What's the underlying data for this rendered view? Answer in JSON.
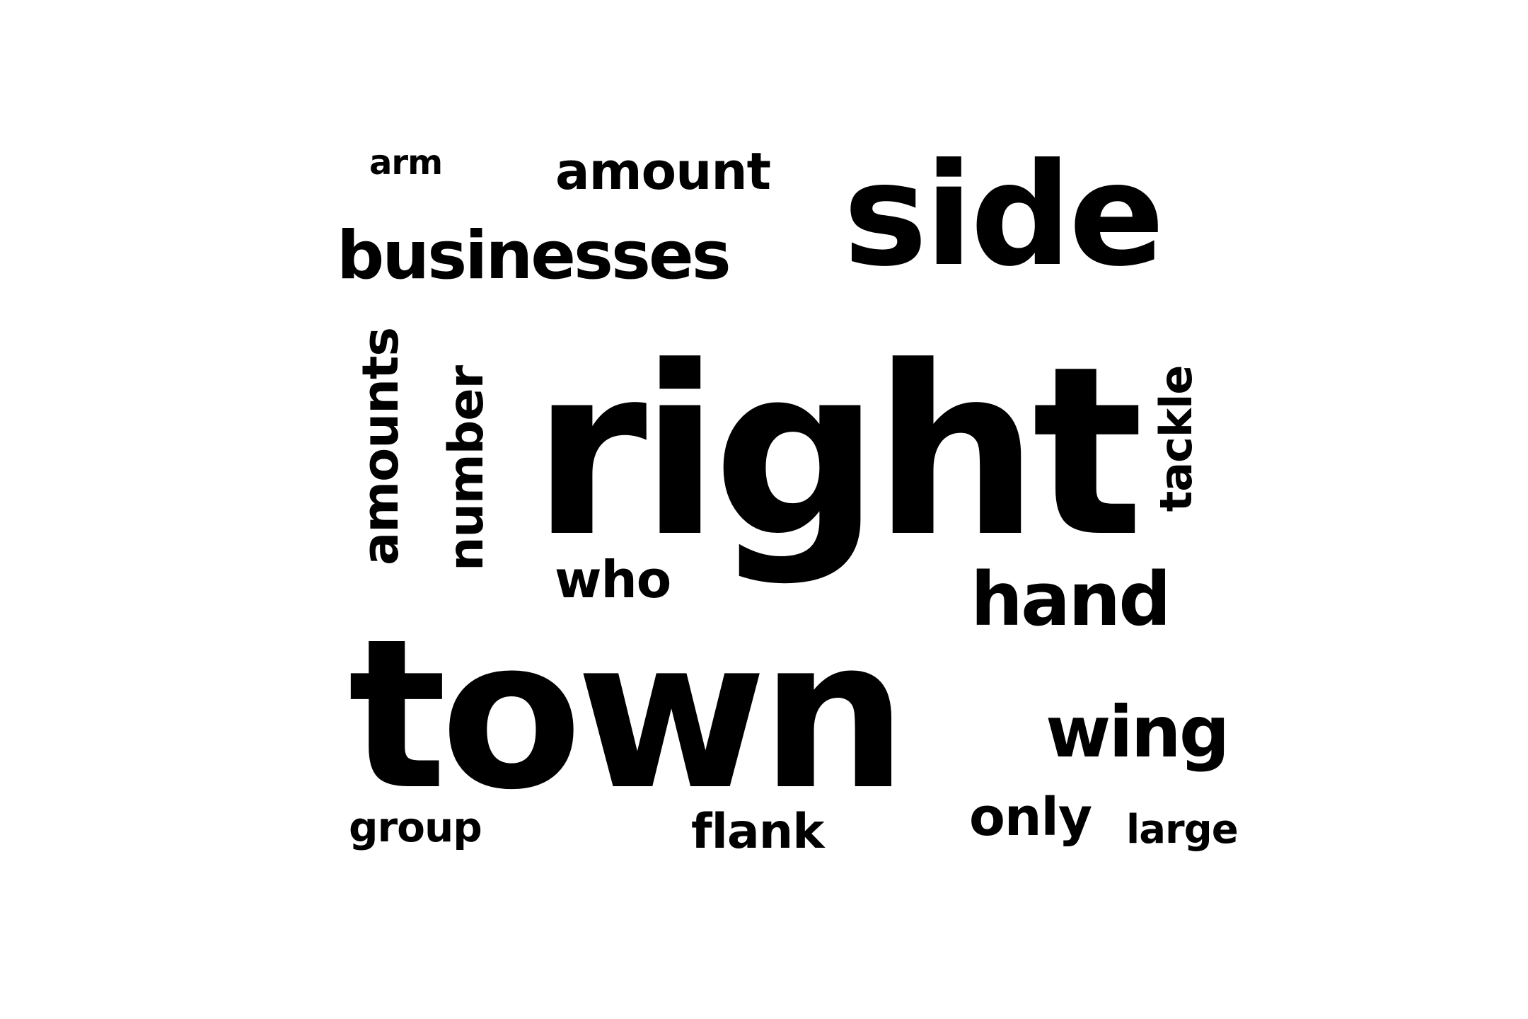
{
  "word_cloud": {
    "text_color": "#000000",
    "background": "#ffffff",
    "words": [
      {
        "text": "arm",
        "orientation": "horizontal"
      },
      {
        "text": "amount",
        "orientation": "horizontal"
      },
      {
        "text": "side",
        "orientation": "horizontal"
      },
      {
        "text": "businesses",
        "orientation": "horizontal"
      },
      {
        "text": "amounts",
        "orientation": "vertical"
      },
      {
        "text": "number",
        "orientation": "vertical"
      },
      {
        "text": "right",
        "orientation": "horizontal"
      },
      {
        "text": "tackle",
        "orientation": "vertical"
      },
      {
        "text": "who",
        "orientation": "horizontal"
      },
      {
        "text": "hand",
        "orientation": "horizontal"
      },
      {
        "text": "town",
        "orientation": "horizontal"
      },
      {
        "text": "wing",
        "orientation": "horizontal"
      },
      {
        "text": "group",
        "orientation": "horizontal"
      },
      {
        "text": "flank",
        "orientation": "horizontal"
      },
      {
        "text": "only",
        "orientation": "horizontal"
      },
      {
        "text": "large",
        "orientation": "horizontal"
      }
    ]
  }
}
